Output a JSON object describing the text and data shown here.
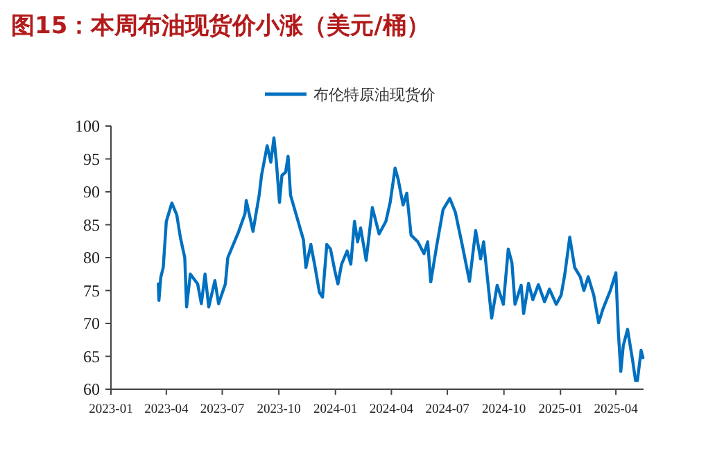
{
  "chart_data": {
    "type": "line",
    "title": "图15：本周布油现货价小涨（美元/桶）",
    "legend": "top",
    "grid": false,
    "marker": "none",
    "line_style": "solid",
    "xlim": [
      "2023-01-01",
      "2025-05-16"
    ],
    "xticks": [
      {
        "value": "2023-01-01",
        "label": "2023-01"
      },
      {
        "value": "2023-04-01",
        "label": "2023-04"
      },
      {
        "value": "2023-07-01",
        "label": "2023-07"
      },
      {
        "value": "2023-10-01",
        "label": "2023-10"
      },
      {
        "value": "2024-01-01",
        "label": "2024-01"
      },
      {
        "value": "2024-04-01",
        "label": "2024-04"
      },
      {
        "value": "2024-07-01",
        "label": "2024-07"
      },
      {
        "value": "2024-10-01",
        "label": "2024-10"
      },
      {
        "value": "2025-01-01",
        "label": "2025-01"
      },
      {
        "value": "2025-04-01",
        "label": "2025-04"
      }
    ],
    "ylim": [
      60,
      100
    ],
    "yticks": [
      60,
      65,
      70,
      75,
      80,
      85,
      90,
      95,
      100
    ],
    "x": [
      "2023-03-19",
      "2023-03-20",
      "2023-03-23",
      "2023-03-27",
      "2023-04-01",
      "2023-04-10",
      "2023-04-18",
      "2023-04-24",
      "2023-05-01",
      "2023-05-04",
      "2023-05-10",
      "2023-05-22",
      "2023-05-28",
      "2023-06-03",
      "2023-06-09",
      "2023-06-19",
      "2023-06-25",
      "2023-07-06",
      "2023-07-10",
      "2023-07-27",
      "2023-08-07",
      "2023-08-09",
      "2023-08-20",
      "2023-08-30",
      "2023-09-03",
      "2023-09-12",
      "2023-09-18",
      "2023-09-23",
      "2023-09-27",
      "2023-10-02",
      "2023-10-06",
      "2023-10-12",
      "2023-10-16",
      "2023-10-20",
      "2023-11-10",
      "2023-11-14",
      "2023-11-22",
      "2023-11-29",
      "2023-12-06",
      "2023-12-11",
      "2023-12-18",
      "2023-12-24",
      "2023-12-31",
      "2024-01-05",
      "2024-01-11",
      "2024-01-20",
      "2024-01-26",
      "2024-02-01",
      "2024-02-06",
      "2024-02-11",
      "2024-02-20",
      "2024-03-01",
      "2024-03-12",
      "2024-03-23",
      "2024-03-30",
      "2024-04-07",
      "2024-04-12",
      "2024-04-20",
      "2024-04-26",
      "2024-05-03",
      "2024-05-14",
      "2024-05-24",
      "2024-05-30",
      "2024-06-04",
      "2024-06-14",
      "2024-06-24",
      "2024-07-05",
      "2024-07-14",
      "2024-07-25",
      "2024-08-06",
      "2024-08-16",
      "2024-08-24",
      "2024-08-29",
      "2024-09-11",
      "2024-09-20",
      "2024-09-30",
      "2024-10-08",
      "2024-10-14",
      "2024-10-19",
      "2024-10-29",
      "2024-11-02",
      "2024-11-10",
      "2024-11-17",
      "2024-11-26",
      "2024-12-06",
      "2024-12-14",
      "2024-12-25",
      "2025-01-02",
      "2025-01-08",
      "2025-01-16",
      "2025-01-24",
      "2025-02-02",
      "2025-02-08",
      "2025-02-15",
      "2025-02-24",
      "2025-03-04",
      "2025-03-11",
      "2025-03-23",
      "2025-04-01",
      "2025-04-05",
      "2025-04-09",
      "2025-04-13",
      "2025-04-20",
      "2025-04-28",
      "2025-05-03",
      "2025-05-06",
      "2025-05-12",
      "2025-05-15"
    ],
    "series": [
      {
        "name": "布伦特原油现货价",
        "color": "#0070c0",
        "values": [
          76,
          73.5,
          77,
          78.5,
          85.5,
          88.3,
          86.5,
          83,
          80,
          72.5,
          77.5,
          76,
          73,
          77.5,
          72.5,
          76.5,
          73,
          76,
          80,
          83.8,
          86.7,
          88.7,
          84,
          89.5,
          92.6,
          97,
          94.5,
          98.2,
          94.5,
          88.4,
          92.5,
          93,
          95.4,
          89.5,
          82.7,
          78.5,
          82,
          78.5,
          74.7,
          74,
          82,
          81.3,
          78,
          76,
          79,
          81,
          79,
          85.5,
          82.4,
          84.5,
          79.6,
          87.6,
          83.6,
          85.5,
          88.4,
          93.6,
          91.9,
          88,
          89.8,
          83.4,
          82.4,
          80.6,
          82.4,
          76.3,
          82,
          87.3,
          89,
          86.9,
          82,
          76.4,
          84.1,
          79.8,
          82.4,
          70.8,
          75.8,
          72.9,
          81.3,
          79.2,
          72.9,
          75.8,
          71.5,
          76.1,
          73.6,
          75.9,
          73.3,
          75.2,
          72.9,
          74.3,
          77.5,
          83.1,
          78.5,
          77.1,
          75,
          77.1,
          74.3,
          70.1,
          72.2,
          75,
          77.7,
          68.7,
          62.7,
          66.6,
          69.1,
          64.5,
          61.3,
          61.3,
          65.9,
          64.8
        ]
      }
    ]
  }
}
